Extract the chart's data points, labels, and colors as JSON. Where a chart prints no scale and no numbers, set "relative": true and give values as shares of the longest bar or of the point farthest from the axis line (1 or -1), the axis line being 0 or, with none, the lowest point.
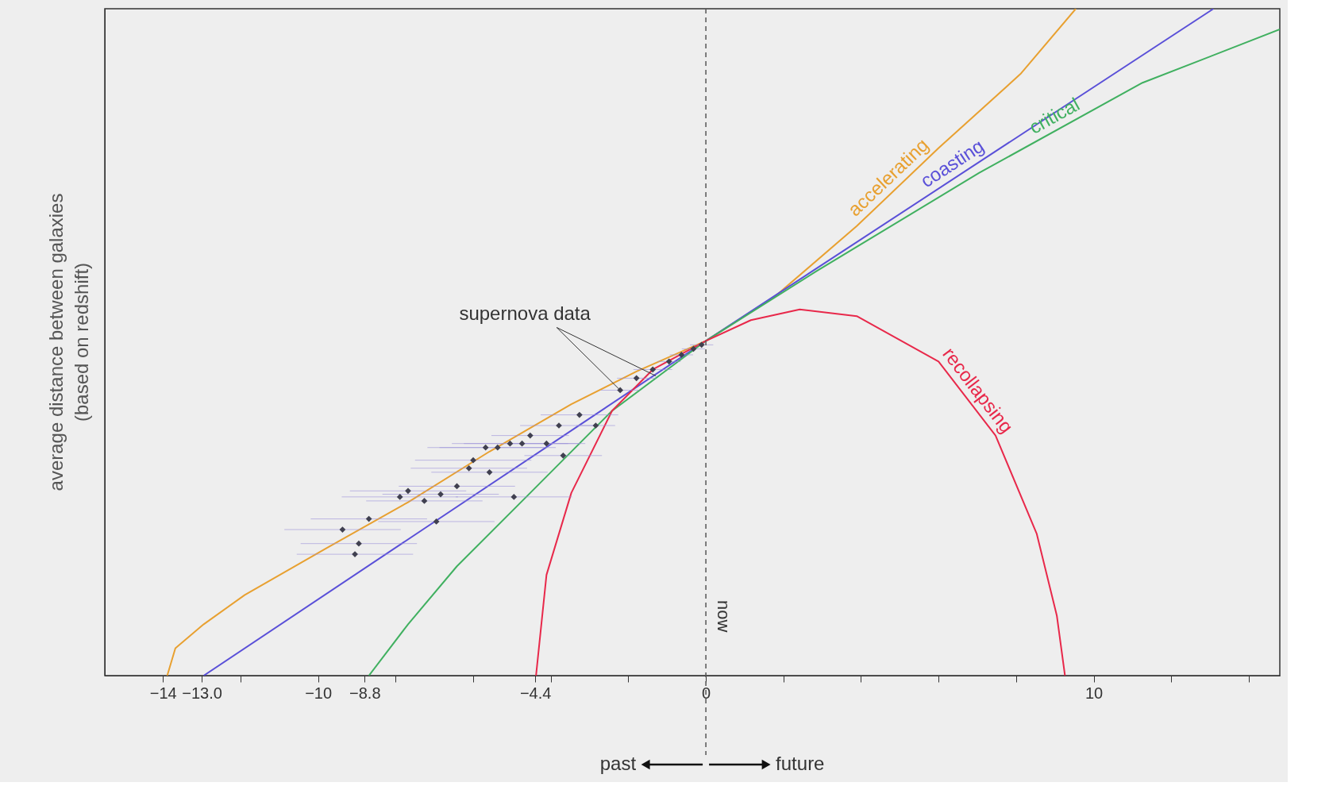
{
  "chart_data": {
    "type": "line",
    "relative": true,
    "ylabel": "average distance between galaxies\n(based on redshift)",
    "xlim": [
      -15.5,
      14.8
    ],
    "xticks": [
      {
        "value": -14,
        "label": "−14"
      },
      {
        "value": -13.0,
        "label": "−13.0"
      },
      {
        "value": -12,
        "label": null
      },
      {
        "value": -10,
        "label": "−10"
      },
      {
        "value": -8.8,
        "label": "−8.8"
      },
      {
        "value": -8,
        "label": null
      },
      {
        "value": -6,
        "label": null
      },
      {
        "value": -4.4,
        "label": "−4.4"
      },
      {
        "value": -4,
        "label": null
      },
      {
        "value": -2,
        "label": null
      },
      {
        "value": 0,
        "label": "0"
      },
      {
        "value": 2,
        "label": null
      },
      {
        "value": 4,
        "label": null
      },
      {
        "value": 6,
        "label": null
      },
      {
        "value": 8,
        "label": null
      },
      {
        "value": 10,
        "label": "10"
      },
      {
        "value": 12,
        "label": null
      },
      {
        "value": 14,
        "label": null
      }
    ],
    "grid": false,
    "series": [
      {
        "name": "accelerating",
        "color": "#e8a030",
        "x": [
          -13.89,
          -13.68,
          -12.95,
          -11.89,
          -9.79,
          -7.68,
          -5.58,
          -3.47,
          -1.79,
          0,
          1.79,
          3.89,
          6.0,
          8.11,
          9.54
        ],
        "values": [
          0,
          0.041,
          0.077,
          0.121,
          0.191,
          0.26,
          0.336,
          0.407,
          0.456,
          0.502,
          0.569,
          0.674,
          0.791,
          0.902,
          1.0
        ]
      },
      {
        "name": "coasting",
        "color": "#5a50d8",
        "x": [
          -12.95,
          0,
          13.09
        ],
        "values": [
          0,
          0.502,
          1.0
        ]
      },
      {
        "name": "critical",
        "color": "#40b060",
        "x": [
          -8.69,
          -7.68,
          -6.42,
          -4.53,
          -2.42,
          0,
          2.84,
          7.05,
          11.26,
          14.8
        ],
        "values": [
          0,
          0.077,
          0.164,
          0.274,
          0.397,
          0.502,
          0.606,
          0.754,
          0.889,
          0.969
        ]
      },
      {
        "name": "recollapsing",
        "color": "#e8284a",
        "x": [
          -4.38,
          -4.11,
          -3.47,
          -2.42,
          -1.37,
          0,
          1.16,
          2.42,
          3.89,
          6.0,
          7.47,
          8.53,
          9.05,
          9.26
        ],
        "values": [
          0,
          0.151,
          0.274,
          0.397,
          0.459,
          0.502,
          0.533,
          0.549,
          0.539,
          0.471,
          0.36,
          0.213,
          0.09,
          0
        ]
      },
      {
        "type": "scatter",
        "color": "#404050",
        "x": [
          -9.37,
          -8.95,
          -8.69,
          -9.05,
          -7.89,
          -7.68,
          -7.26,
          -6.84,
          -6.42,
          -6.95,
          -6.11,
          -6.0,
          -5.68,
          -5.37,
          -5.05,
          -4.74,
          -5.58,
          -4.95,
          -4.53,
          -4.11,
          -3.79,
          -3.68,
          -3.26,
          -2.84,
          -2.21,
          -1.79,
          -1.37,
          -0.95,
          -0.63,
          -0.32,
          -0.11
        ],
        "values": [
          0.219,
          0.198,
          0.235,
          0.182,
          0.268,
          0.277,
          0.262,
          0.272,
          0.284,
          0.231,
          0.311,
          0.323,
          0.342,
          0.342,
          0.348,
          0.348,
          0.305,
          0.268,
          0.36,
          0.348,
          0.375,
          0.33,
          0.391,
          0.375,
          0.428,
          0.446,
          0.459,
          0.471,
          0.481,
          0.49,
          0.496
        ],
        "xerrors": [
          1.5,
          1.5,
          1.5,
          1.5,
          1.5,
          1.5,
          1.5,
          1.5,
          1.5,
          1.5,
          1.5,
          1.5,
          1.5,
          1.5,
          1.5,
          1.5,
          1.5,
          1.5,
          1.0,
          1.0,
          1.0,
          1.0,
          1.0,
          0.5,
          0.5,
          0.5,
          0.5,
          0.3,
          0.3,
          0.3,
          0.3
        ]
      }
    ],
    "ref_lines": [
      {
        "axis": "x",
        "value": 0,
        "label": "now",
        "line_style": "dashed",
        "color": "#555555"
      }
    ],
    "annotations": [
      {
        "text": "supernova data",
        "x": -2.21,
        "y": 0.428
      },
      "past",
      "future"
    ]
  }
}
